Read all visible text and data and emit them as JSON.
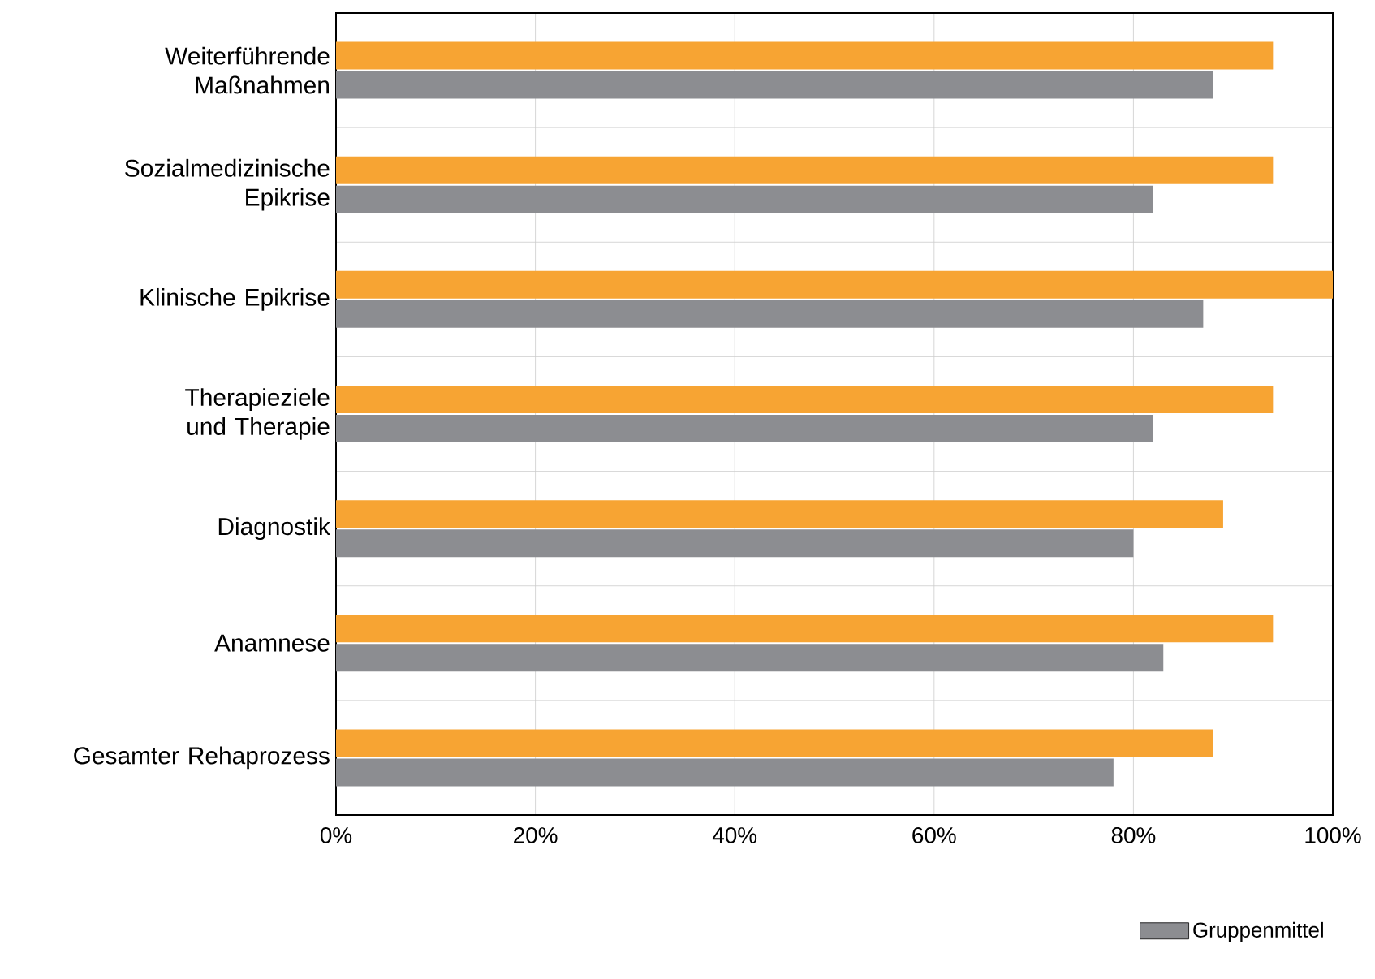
{
  "chart_data": {
    "type": "bar",
    "orientation": "horizontal",
    "categories": [
      "Weiterführende Maßnahmen",
      "Sozialmedizinische Epikrise",
      "Klinische Epikrise",
      "Therapieziele und Therapie",
      "Diagnostik",
      "Anamnese",
      "Gesamter Rehaprozess"
    ],
    "series": [
      {
        "color": "#f7a433",
        "values": [
          94,
          94,
          100,
          94,
          89,
          94,
          88
        ]
      },
      {
        "name": "Gruppenmittel",
        "color": "#8c8d91",
        "values": [
          88,
          82,
          87,
          82,
          80,
          83,
          78
        ]
      }
    ],
    "xlim": [
      0,
      100
    ],
    "xticks": [
      {
        "value": 0,
        "label": "0%"
      },
      {
        "value": 20,
        "label": "20%"
      },
      {
        "value": 40,
        "label": "40%"
      },
      {
        "value": 60,
        "label": "60%"
      },
      {
        "value": 80,
        "label": "80%"
      },
      {
        "value": 100,
        "label": "100%"
      }
    ],
    "grid": true,
    "legend": "bottom"
  }
}
